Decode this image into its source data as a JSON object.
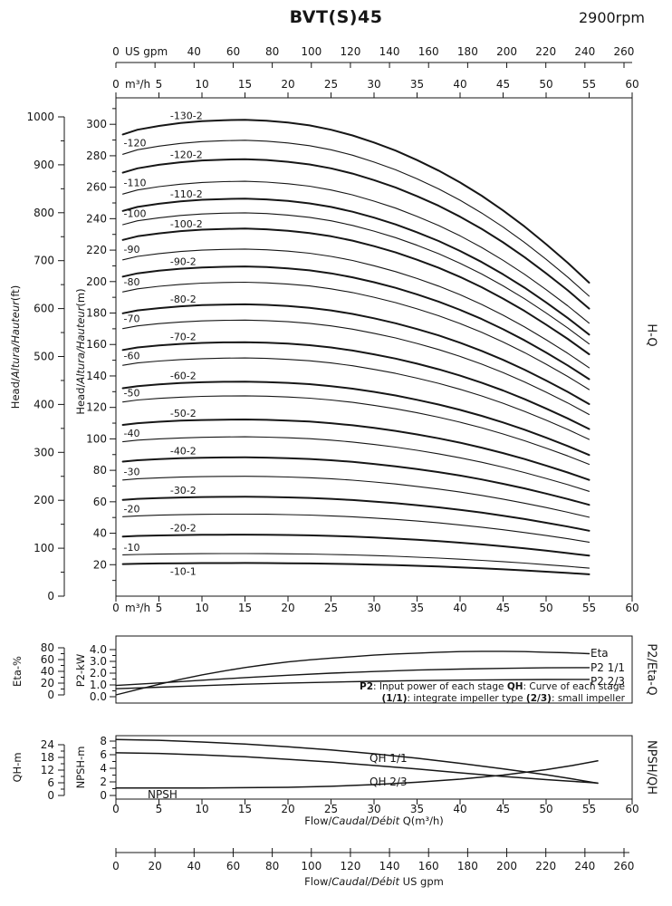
{
  "header": {
    "title": "BVT(S)45",
    "rpm": "2900rpm"
  },
  "axis_titles": {
    "main_outer": {
      "pre": "Head/",
      "it": "Altura/Hauteur",
      "post": "(ft)"
    },
    "main_inner": {
      "pre": "Head/",
      "it": "Altura/Hauteur",
      "post": "(m)"
    },
    "mid_outer": "Eta-%",
    "mid_inner": "P2-kW",
    "bot_outer": "QH-m",
    "bot_inner": "NPSH-m",
    "right_main": "H-Q",
    "right_mid": "P2/Eta-Q",
    "right_bot": "NPSH/QH",
    "flow_m3h": {
      "pre": "Flow/",
      "it": "Caudal/Débit",
      "post": " Q(m³/h)"
    },
    "flow_gpm": {
      "pre": "Flow/",
      "it": "Caudal/Débit",
      "post": " US gpm"
    }
  },
  "note": {
    "line1": [
      {
        "b": "P2"
      },
      {
        "t": ": Input power of each stage "
      },
      {
        "b": "QH"
      },
      {
        "t": ": Curve of each stage"
      }
    ],
    "line2": [
      {
        "b": "(1/1)"
      },
      {
        "t": ": integrate impeller type "
      },
      {
        "b": "(2/3)"
      },
      {
        "t": ": small impeller"
      }
    ]
  },
  "chart_data": [
    {
      "id": "hq",
      "type": "line",
      "name": "H-Q",
      "grid": false,
      "x_axis_m3h": {
        "unit": "m³/h",
        "range": [
          0,
          60
        ],
        "ticks": [
          0,
          5,
          10,
          15,
          20,
          25,
          30,
          35,
          40,
          45,
          50,
          55,
          60
        ]
      },
      "x_axis_gpm": {
        "unit": "US gpm",
        "range": [
          0,
          260
        ],
        "tick_step": 20,
        "labeled": [
          0,
          40,
          60,
          80,
          100,
          120,
          140,
          160,
          180,
          200,
          220,
          240,
          260
        ]
      },
      "y_axis_ft": {
        "range": [
          0,
          1040
        ],
        "ticks": [
          0,
          100,
          200,
          300,
          400,
          500,
          600,
          700,
          800,
          900,
          1000
        ],
        "minor_step": 50
      },
      "y_axis_m": {
        "range": [
          0,
          316
        ],
        "ticks": [
          20,
          40,
          60,
          80,
          100,
          120,
          140,
          160,
          180,
          200,
          220,
          240,
          260,
          280,
          300
        ],
        "minor_step": 10
      },
      "shape_q": [
        0.8,
        2.5,
        5,
        7.5,
        10,
        12.5,
        15,
        17.5,
        20,
        22.5,
        25,
        27.5,
        30,
        32.5,
        35,
        37.5,
        40,
        42.5,
        45,
        47.5,
        50,
        52.5,
        55
      ],
      "shape_s": [
        0.972,
        0.982,
        0.99,
        0.996,
        1.0,
        1.002,
        1.003,
        1.001,
        0.997,
        0.991,
        0.982,
        0.97,
        0.955,
        0.938,
        0.918,
        0.896,
        0.871,
        0.843,
        0.812,
        0.778,
        0.741,
        0.702,
        0.66
      ],
      "curves": [
        {
          "label": "-130-2",
          "peak_m": 302,
          "bold": true,
          "label_q": 6.3
        },
        {
          "label": "-120",
          "peak_m": 289,
          "bold": false,
          "label_q": 0.9
        },
        {
          "label": "-120-2",
          "peak_m": 277,
          "bold": true,
          "label_q": 6.3
        },
        {
          "label": "-110",
          "peak_m": 263,
          "bold": false,
          "label_q": 0.9
        },
        {
          "label": "-110-2",
          "peak_m": 252,
          "bold": true,
          "label_q": 6.3
        },
        {
          "label": "-100",
          "peak_m": 243,
          "bold": false,
          "label_q": 0.9
        },
        {
          "label": "-100-2",
          "peak_m": 233,
          "bold": true,
          "label_q": 6.3
        },
        {
          "label": "-90",
          "peak_m": 220,
          "bold": false,
          "label_q": 0.9
        },
        {
          "label": "-90-2",
          "peak_m": 209,
          "bold": true,
          "label_q": 6.3
        },
        {
          "label": "-80",
          "peak_m": 199,
          "bold": false,
          "label_q": 0.9
        },
        {
          "label": "-80-2",
          "peak_m": 185,
          "bold": true,
          "label_q": 6.3
        },
        {
          "label": "-70",
          "peak_m": 175,
          "bold": false,
          "label_q": 0.9
        },
        {
          "label": "-70-2",
          "peak_m": 161,
          "bold": true,
          "label_q": 6.3
        },
        {
          "label": "-60",
          "peak_m": 151,
          "bold": false,
          "label_q": 0.9
        },
        {
          "label": "-60-2",
          "peak_m": 136,
          "bold": true,
          "label_q": 6.3
        },
        {
          "label": "-50",
          "peak_m": 127,
          "bold": false,
          "label_q": 0.9
        },
        {
          "label": "-50-2",
          "peak_m": 112,
          "bold": true,
          "label_q": 6.3
        },
        {
          "label": "-40",
          "peak_m": 101,
          "bold": false,
          "label_q": 0.9
        },
        {
          "label": "-40-2",
          "peak_m": 88,
          "bold": true,
          "label_q": 6.3
        },
        {
          "label": "-30",
          "peak_m": 76,
          "bold": false,
          "label_q": 0.9
        },
        {
          "label": "-30-2",
          "peak_m": 63,
          "bold": true,
          "label_q": 6.3
        },
        {
          "label": "-20",
          "peak_m": 52,
          "bold": false,
          "label_q": 0.9
        },
        {
          "label": "-20-2",
          "peak_m": 39,
          "bold": true,
          "label_q": 6.3
        },
        {
          "label": "-10",
          "peak_m": 27,
          "bold": false,
          "label_q": 0.9
        },
        {
          "label": "-10-1",
          "peak_m": 21,
          "bold": true,
          "label_q": 6.3,
          "label_below": true
        }
      ]
    },
    {
      "id": "p2eta",
      "type": "line",
      "name": "P2/Eta-Q",
      "grid": false,
      "y_axis_eta": {
        "unit": "%",
        "range": [
          0,
          84
        ],
        "ticks": [
          0,
          20,
          40,
          60,
          80
        ],
        "minor_step": 10
      },
      "y_axis_kw": {
        "unit": "kW",
        "range": [
          0,
          4.6
        ],
        "ticks": [
          0,
          1,
          2,
          3,
          4
        ],
        "minor_step": 0.5,
        "decimals": 1
      },
      "series": [
        {
          "name": "Eta",
          "axis": "eta",
          "label_at": [
            652,
            725
          ],
          "points": [
            [
              0,
              0
            ],
            [
              2.5,
              9
            ],
            [
              5,
              18
            ],
            [
              7.5,
              26.5
            ],
            [
              10,
              34
            ],
            [
              12.5,
              40.5
            ],
            [
              15,
              46.5
            ],
            [
              17.5,
              51.5
            ],
            [
              20,
              56
            ],
            [
              22.5,
              59.5
            ],
            [
              25,
              62.5
            ],
            [
              27.5,
              65
            ],
            [
              30,
              67.5
            ],
            [
              32.5,
              69.5
            ],
            [
              35,
              71
            ],
            [
              37.5,
              72.5
            ],
            [
              40,
              73.5
            ],
            [
              42.5,
              74
            ],
            [
              45,
              74
            ],
            [
              47.5,
              73.5
            ],
            [
              50,
              72.5
            ],
            [
              52.5,
              71.5
            ],
            [
              55,
              70
            ]
          ]
        },
        {
          "name": "P2 1/1",
          "axis": "kw",
          "label_at": [
            652,
            741
          ],
          "points": [
            [
              0,
              0.95
            ],
            [
              5,
              1.17
            ],
            [
              10,
              1.4
            ],
            [
              15,
              1.62
            ],
            [
              20,
              1.82
            ],
            [
              25,
              2.0
            ],
            [
              30,
              2.14
            ],
            [
              35,
              2.26
            ],
            [
              40,
              2.35
            ],
            [
              45,
              2.41
            ],
            [
              50,
              2.45
            ],
            [
              55,
              2.47
            ]
          ]
        },
        {
          "name": "P2 2/3",
          "axis": "kw",
          "label_at": [
            652,
            756
          ],
          "points": [
            [
              0,
              0.68
            ],
            [
              5,
              0.81
            ],
            [
              10,
              0.94
            ],
            [
              15,
              1.06
            ],
            [
              20,
              1.16
            ],
            [
              25,
              1.24
            ],
            [
              30,
              1.31
            ],
            [
              35,
              1.37
            ],
            [
              40,
              1.41
            ],
            [
              45,
              1.44
            ],
            [
              50,
              1.46
            ],
            [
              55,
              1.47
            ]
          ]
        }
      ]
    },
    {
      "id": "npshqh",
      "type": "line",
      "name": "NPSH/QH",
      "grid": false,
      "x_axis": {
        "unit": "m³/h",
        "range": [
          0,
          60
        ],
        "ticks": [
          0,
          5,
          10,
          15,
          20,
          25,
          30,
          35,
          40,
          45,
          50,
          55,
          60
        ]
      },
      "x_axis_gpm": {
        "unit": "US gpm",
        "range": [
          0,
          260
        ],
        "tick_step": 20,
        "labeled": [
          0,
          20,
          40,
          60,
          80,
          100,
          120,
          140,
          160,
          180,
          200,
          220,
          240,
          260
        ]
      },
      "y_axis_qh": {
        "unit": "m",
        "range": [
          0,
          30
        ],
        "ticks": [
          0,
          6,
          12,
          18,
          24
        ],
        "minor_step": 3
      },
      "y_axis_npsh": {
        "unit": "m",
        "range": [
          0,
          8.8
        ],
        "ticks": [
          0,
          2,
          4,
          6,
          8
        ],
        "minor_step": 1
      },
      "series": [
        {
          "name": "QH 1/1",
          "axis": "qh",
          "label_at": [
            408,
            841
          ],
          "points": [
            [
              0,
              26.5
            ],
            [
              5,
              26.1
            ],
            [
              10,
              25.3
            ],
            [
              15,
              24.3
            ],
            [
              20,
              23.0
            ],
            [
              25,
              21.5
            ],
            [
              30,
              19.7
            ],
            [
              35,
              17.6
            ],
            [
              40,
              15.2
            ],
            [
              45,
              12.6
            ],
            [
              50,
              9.8
            ],
            [
              53,
              7.9
            ],
            [
              56,
              5.8
            ]
          ]
        },
        {
          "name": "QH 2/3",
          "axis": "qh",
          "label_at": [
            408,
            867
          ],
          "points": [
            [
              0,
              20.2
            ],
            [
              5,
              19.9
            ],
            [
              10,
              19.2
            ],
            [
              15,
              18.3
            ],
            [
              20,
              17.1
            ],
            [
              25,
              15.8
            ],
            [
              30,
              14.2
            ],
            [
              35,
              12.5
            ],
            [
              40,
              10.7
            ],
            [
              45,
              9.0
            ],
            [
              50,
              7.5
            ],
            [
              53,
              6.7
            ],
            [
              56,
              5.9
            ]
          ]
        },
        {
          "name": "NPSH",
          "axis": "npsh",
          "label_at": [
            163,
            881
          ],
          "points": [
            [
              0,
              1.1
            ],
            [
              10,
              1.1
            ],
            [
              20,
              1.2
            ],
            [
              25,
              1.35
            ],
            [
              30,
              1.6
            ],
            [
              35,
              1.95
            ],
            [
              40,
              2.4
            ],
            [
              45,
              3.0
            ],
            [
              50,
              3.8
            ],
            [
              53,
              4.4
            ],
            [
              56,
              5.1
            ]
          ]
        }
      ]
    }
  ]
}
